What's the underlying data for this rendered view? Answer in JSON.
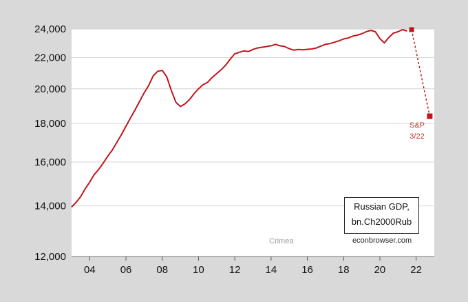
{
  "chart_data": {
    "type": "line",
    "title": "",
    "xlabel": "",
    "ylabel": "",
    "y_scale": "log",
    "ylim": [
      12000,
      24000
    ],
    "xlim": [
      2003.0,
      2023.0
    ],
    "y_ticks": [
      12000,
      14000,
      16000,
      18000,
      20000,
      22000,
      24000
    ],
    "y_tick_labels": [
      "12,000",
      "14,000",
      "16,000",
      "18,000",
      "20,000",
      "22,000",
      "24,000"
    ],
    "x_ticks": [
      2004,
      2006,
      2008,
      2010,
      2012,
      2014,
      2016,
      2018,
      2020,
      2022
    ],
    "x_tick_labels": [
      "04",
      "06",
      "08",
      "10",
      "12",
      "14",
      "16",
      "18",
      "20",
      "22"
    ],
    "grid": "horizontal",
    "series": [
      {
        "style": "solid",
        "color": "#c0151b",
        "x": [
          2003.0,
          2003.25,
          2003.5,
          2003.75,
          2004.0,
          2004.25,
          2004.5,
          2004.75,
          2005.0,
          2005.25,
          2005.5,
          2005.75,
          2006.0,
          2006.25,
          2006.5,
          2006.75,
          2007.0,
          2007.25,
          2007.5,
          2007.75,
          2008.0,
          2008.25,
          2008.5,
          2008.75,
          2009.0,
          2009.25,
          2009.5,
          2009.75,
          2010.0,
          2010.25,
          2010.5,
          2010.75,
          2011.0,
          2011.25,
          2011.5,
          2011.75,
          2012.0,
          2012.25,
          2012.5,
          2012.75,
          2013.0,
          2013.25,
          2013.5,
          2013.75,
          2014.0,
          2014.25,
          2014.5,
          2014.75,
          2015.0,
          2015.25,
          2015.5,
          2015.75,
          2016.0,
          2016.25,
          2016.5,
          2016.75,
          2017.0,
          2017.25,
          2017.5,
          2017.75,
          2018.0,
          2018.25,
          2018.5,
          2018.75,
          2019.0,
          2019.25,
          2019.5,
          2019.75,
          2020.0,
          2020.25,
          2020.5,
          2020.75,
          2021.0,
          2021.25,
          2021.5
        ],
        "values": [
          13950,
          14150,
          14400,
          14750,
          15050,
          15400,
          15650,
          15950,
          16300,
          16600,
          17000,
          17400,
          17850,
          18300,
          18750,
          19250,
          19750,
          20200,
          20800,
          21100,
          21150,
          20750,
          19900,
          19200,
          18950,
          19100,
          19350,
          19700,
          20000,
          20250,
          20400,
          20700,
          20950,
          21200,
          21500,
          21900,
          22250,
          22350,
          22450,
          22400,
          22550,
          22650,
          22700,
          22750,
          22800,
          22900,
          22800,
          22750,
          22600,
          22500,
          22550,
          22520,
          22560,
          22580,
          22650,
          22780,
          22900,
          22950,
          23050,
          23150,
          23280,
          23350,
          23480,
          23550,
          23650,
          23800,
          23900,
          23800,
          23300,
          23000,
          23400,
          23700,
          23800,
          23950,
          23850
        ]
      },
      {
        "style": "dashed",
        "color": "#c0151b",
        "marker": "square",
        "x": [
          2021.75,
          2022.75
        ],
        "values": [
          23950,
          18400
        ]
      }
    ],
    "annotations": [
      {
        "text": "Crimea",
        "x": 2014.25
      },
      {
        "text": "S&P",
        "x": 2022.75
      },
      {
        "text": "3/22",
        "x": 2022.75
      }
    ],
    "legend": {
      "line1": "Russian GDP,",
      "line2": "bn.Ch2000Rub",
      "placement": "bottom-right"
    },
    "source": "econbrowser.com"
  }
}
